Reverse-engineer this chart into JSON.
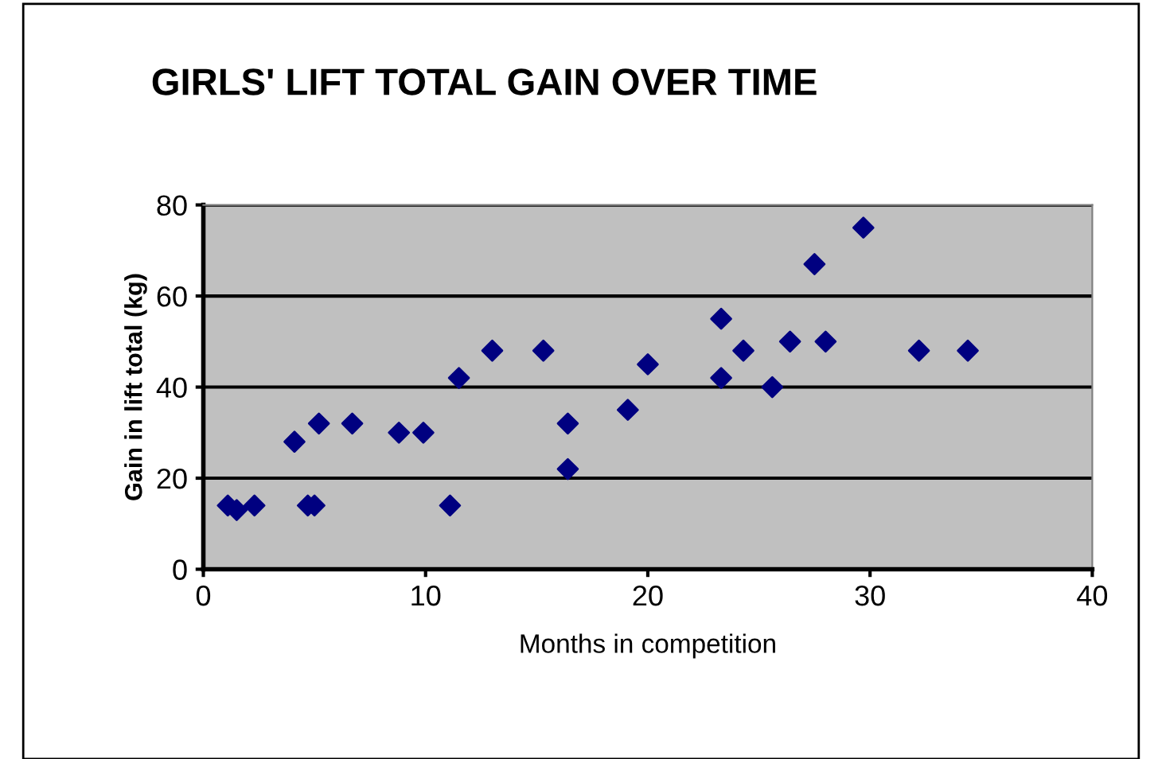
{
  "chart_data": {
    "type": "scatter",
    "title": "GIRLS' LIFT TOTAL GAIN OVER TIME",
    "xlabel": "Months in competition",
    "ylabel": "Gain in lift total (kg)",
    "xlim": [
      0,
      40
    ],
    "xticks": [
      0,
      10,
      20,
      30,
      40
    ],
    "ylim": [
      0,
      80
    ],
    "yticks": [
      0,
      20,
      40,
      60,
      80
    ],
    "grid": "y",
    "marker": "diamond",
    "series": [
      {
        "color": "#000080",
        "x": [
          1.1,
          1.5,
          2.3,
          4.1,
          4.7,
          5.0,
          5.2,
          6.7,
          8.8,
          9.9,
          11.1,
          11.5,
          13,
          15.3,
          16.4,
          16.4,
          19.1,
          20,
          23.3,
          23.3,
          24.3,
          25.6,
          26.4,
          27.5,
          28,
          29.7,
          32.2,
          34.4
        ],
        "values": [
          14,
          13,
          14,
          28,
          14,
          14,
          32,
          32,
          30,
          30,
          14,
          42,
          48,
          48,
          32,
          22,
          35,
          45,
          55,
          42,
          48,
          40,
          50,
          67,
          50,
          75,
          48,
          48
        ]
      }
    ]
  }
}
